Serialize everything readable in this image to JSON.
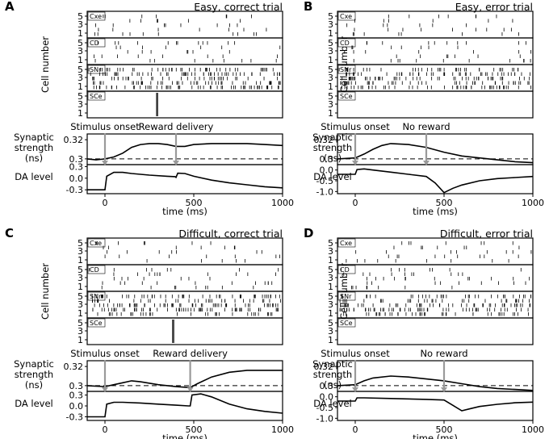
{
  "figure": {
    "ylabel_raster": "Cell number",
    "ylabel_syn": [
      "Synaptic",
      "strength",
      "(ns)"
    ],
    "ylabel_da": "DA level",
    "xlabel": "time (ms)",
    "raster_ticks": [
      "5",
      "3",
      "1"
    ],
    "x_ticks": [
      "0",
      "500",
      "1000"
    ]
  },
  "chart_data": [
    {
      "panel": "A",
      "title": "Easy, correct trial",
      "type": "line",
      "rows": [
        "Cxe",
        "CD",
        "SNr",
        "SCe"
      ],
      "events": [
        {
          "label": "Stimulus onset",
          "t": 0
        },
        {
          "label": "Reward delivery",
          "t": 400
        }
      ],
      "syn_yticks": [
        "0.32",
        "0.3"
      ],
      "da_yticks": [
        "0.3",
        "0.0",
        "-0.3"
      ],
      "xlim": [
        -100,
        1000
      ],
      "syn_ylim": [
        0.294,
        0.326
      ],
      "da_ylim": [
        -0.4,
        0.35
      ],
      "syn_baseline": 0.3,
      "syn": [
        [
          -100,
          0.3
        ],
        [
          -50,
          0.299
        ],
        [
          0,
          0.3
        ],
        [
          50,
          0.302
        ],
        [
          100,
          0.306
        ],
        [
          150,
          0.312
        ],
        [
          200,
          0.315
        ],
        [
          250,
          0.316
        ],
        [
          300,
          0.316
        ],
        [
          350,
          0.315
        ],
        [
          400,
          0.313
        ],
        [
          450,
          0.313
        ],
        [
          500,
          0.315
        ],
        [
          600,
          0.316
        ],
        [
          700,
          0.316
        ],
        [
          800,
          0.316
        ],
        [
          900,
          0.315
        ],
        [
          1000,
          0.314
        ]
      ],
      "da": [
        [
          -100,
          -0.3
        ],
        [
          0,
          -0.3
        ],
        [
          10,
          0.05
        ],
        [
          50,
          0.15
        ],
        [
          100,
          0.15
        ],
        [
          150,
          0.12
        ],
        [
          250,
          0.08
        ],
        [
          350,
          0.05
        ],
        [
          395,
          0.04
        ],
        [
          400,
          0.02
        ],
        [
          410,
          0.13
        ],
        [
          450,
          0.12
        ],
        [
          500,
          0.05
        ],
        [
          600,
          -0.05
        ],
        [
          700,
          -0.12
        ],
        [
          800,
          -0.17
        ],
        [
          900,
          -0.22
        ],
        [
          1000,
          -0.25
        ]
      ],
      "sce_burst": [
        290,
        300
      ]
    },
    {
      "panel": "B",
      "title": "Easy, error trial",
      "type": "line",
      "rows": [
        "Cxe",
        "CD",
        "SNr",
        "SCe"
      ],
      "events": [
        {
          "label": "Stimulus onset",
          "t": 0
        },
        {
          "label": "No reward",
          "t": 400
        }
      ],
      "syn_yticks": [
        "0.32",
        "0.3"
      ],
      "da_yticks": [
        "0.0",
        "-0.5",
        "-1.0"
      ],
      "xlim": [
        -100,
        1000
      ],
      "syn_ylim": [
        0.294,
        0.326
      ],
      "da_ylim": [
        -1.1,
        0.25
      ],
      "syn_baseline": 0.3,
      "syn": [
        [
          -100,
          0.3
        ],
        [
          0,
          0.301
        ],
        [
          50,
          0.305
        ],
        [
          100,
          0.31
        ],
        [
          150,
          0.314
        ],
        [
          200,
          0.316
        ],
        [
          300,
          0.315
        ],
        [
          400,
          0.312
        ],
        [
          500,
          0.307
        ],
        [
          600,
          0.303
        ],
        [
          700,
          0.301
        ],
        [
          800,
          0.299
        ],
        [
          900,
          0.297
        ],
        [
          1000,
          0.296
        ]
      ],
      "da": [
        [
          -100,
          -0.2
        ],
        [
          0,
          -0.2
        ],
        [
          10,
          0.02
        ],
        [
          50,
          0.05
        ],
        [
          100,
          0.0
        ],
        [
          200,
          -0.1
        ],
        [
          300,
          -0.2
        ],
        [
          400,
          -0.3
        ],
        [
          450,
          -0.6
        ],
        [
          500,
          -1.05
        ],
        [
          550,
          -0.85
        ],
        [
          600,
          -0.7
        ],
        [
          700,
          -0.5
        ],
        [
          800,
          -0.4
        ],
        [
          900,
          -0.35
        ],
        [
          1000,
          -0.3
        ]
      ],
      "sce_burst": null
    },
    {
      "panel": "C",
      "title": "Difficult, correct trial",
      "type": "line",
      "rows": [
        "Cxe",
        "CD",
        "SNr",
        "SCe"
      ],
      "events": [
        {
          "label": "Stimulus onset",
          "t": 0
        },
        {
          "label": "Reward delivery",
          "t": 480
        }
      ],
      "syn_yticks": [
        "0.32",
        "0.3"
      ],
      "da_yticks": [
        "0.3",
        "0.0",
        "-0.3"
      ],
      "xlim": [
        -100,
        1000
      ],
      "syn_ylim": [
        0.294,
        0.326
      ],
      "da_ylim": [
        -0.4,
        0.4
      ],
      "syn_baseline": 0.3,
      "syn": [
        [
          -100,
          0.3
        ],
        [
          0,
          0.299
        ],
        [
          50,
          0.301
        ],
        [
          100,
          0.303
        ],
        [
          150,
          0.305
        ],
        [
          200,
          0.304
        ],
        [
          300,
          0.301
        ],
        [
          400,
          0.299
        ],
        [
          480,
          0.298
        ],
        [
          520,
          0.302
        ],
        [
          600,
          0.309
        ],
        [
          700,
          0.314
        ],
        [
          800,
          0.316
        ],
        [
          900,
          0.316
        ],
        [
          1000,
          0.316
        ]
      ],
      "da": [
        [
          -100,
          -0.3
        ],
        [
          0,
          -0.3
        ],
        [
          10,
          0.05
        ],
        [
          50,
          0.1
        ],
        [
          100,
          0.1
        ],
        [
          200,
          0.08
        ],
        [
          300,
          0.05
        ],
        [
          400,
          0.02
        ],
        [
          470,
          0.0
        ],
        [
          480,
          0.0
        ],
        [
          490,
          0.3
        ],
        [
          540,
          0.33
        ],
        [
          600,
          0.25
        ],
        [
          700,
          0.05
        ],
        [
          800,
          -0.08
        ],
        [
          900,
          -0.15
        ],
        [
          1000,
          -0.2
        ]
      ],
      "sce_burst": [
        380,
        390
      ]
    },
    {
      "panel": "D",
      "title": "Difficult, error trial",
      "type": "line",
      "rows": [
        "Cxe",
        "CD",
        "SNr",
        "SCe"
      ],
      "events": [
        {
          "label": "Stimulus onset",
          "t": 0
        },
        {
          "label": "No reward",
          "t": 500
        }
      ],
      "syn_yticks": [
        "0.32",
        "0.3"
      ],
      "da_yticks": [
        "0.0",
        "-0.5",
        "-1.0"
      ],
      "xlim": [
        -100,
        1000
      ],
      "syn_ylim": [
        0.294,
        0.326
      ],
      "da_ylim": [
        -1.1,
        0.25
      ],
      "syn_baseline": 0.3,
      "syn": [
        [
          -100,
          0.3
        ],
        [
          0,
          0.301
        ],
        [
          50,
          0.305
        ],
        [
          100,
          0.308
        ],
        [
          200,
          0.31
        ],
        [
          300,
          0.309
        ],
        [
          400,
          0.307
        ],
        [
          500,
          0.305
        ],
        [
          600,
          0.302
        ],
        [
          700,
          0.299
        ],
        [
          800,
          0.297
        ],
        [
          900,
          0.296
        ],
        [
          1000,
          0.295
        ]
      ],
      "da": [
        [
          -100,
          -0.2
        ],
        [
          0,
          -0.2
        ],
        [
          10,
          -0.05
        ],
        [
          50,
          -0.05
        ],
        [
          200,
          -0.08
        ],
        [
          400,
          -0.12
        ],
        [
          500,
          -0.15
        ],
        [
          550,
          -0.4
        ],
        [
          600,
          -0.65
        ],
        [
          650,
          -0.55
        ],
        [
          700,
          -0.45
        ],
        [
          800,
          -0.35
        ],
        [
          900,
          -0.28
        ],
        [
          1000,
          -0.25
        ]
      ],
      "sce_burst": null
    }
  ]
}
